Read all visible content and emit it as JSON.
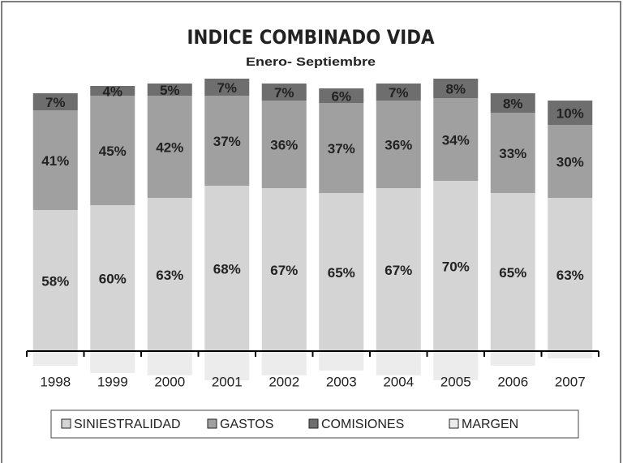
{
  "chart_data": {
    "type": "stacked_bar",
    "title": "INDICE COMBINADO VIDA",
    "subtitle": "Enero- Septiembre",
    "categories": [
      "1998",
      "1999",
      "2000",
      "2001",
      "2002",
      "2003",
      "2004",
      "2005",
      "2006",
      "2007"
    ],
    "series": [
      {
        "name": "SINIESTRALIDAD",
        "color": "#d4d4d4",
        "values": [
          58,
          60,
          63,
          68,
          67,
          65,
          67,
          70,
          65,
          63
        ],
        "value_labels": [
          "58%",
          "60%",
          "63%",
          "68%",
          "67%",
          "65%",
          "67%",
          "70%",
          "65%",
          "63%"
        ]
      },
      {
        "name": "GASTOS",
        "color": "#a0a0a0",
        "values": [
          41,
          45,
          42,
          37,
          36,
          37,
          36,
          34,
          33,
          30
        ],
        "value_labels": [
          "41%",
          "45%",
          "42%",
          "37%",
          "36%",
          "37%",
          "36%",
          "34%",
          "33%",
          "30%"
        ]
      },
      {
        "name": "COMISIONES",
        "color": "#6e6e6e",
        "values": [
          7,
          4,
          5,
          7,
          7,
          6,
          7,
          8,
          8,
          10
        ],
        "value_labels": [
          "7%",
          "4%",
          "5%",
          "7%",
          "7%",
          "6%",
          "7%",
          "8%",
          "8%",
          "10%"
        ]
      },
      {
        "name": "MARGEN",
        "color": "#ececec",
        "values": [
          -6,
          -9,
          -10,
          -12,
          -10,
          -8,
          -10,
          -12,
          -6,
          -3
        ]
      }
    ],
    "ylim": [
      -15,
      115
    ]
  }
}
